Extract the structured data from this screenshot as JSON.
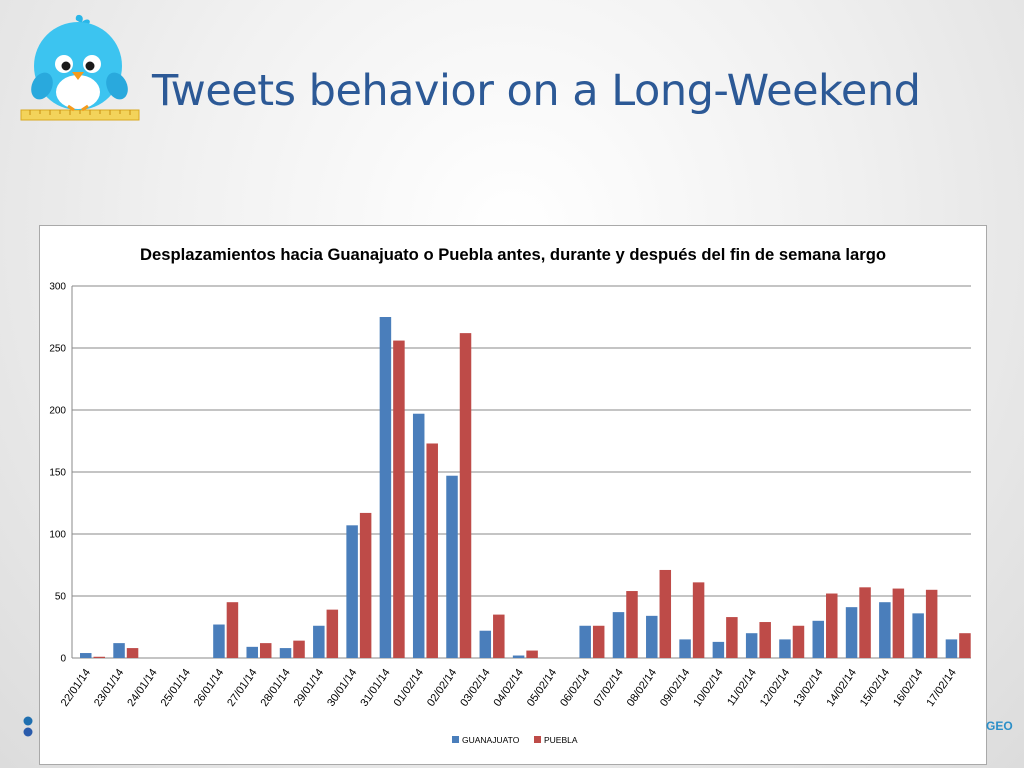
{
  "slide": {
    "title": "Tweets behavior on a Long-Weekend",
    "logo_icon": "twitter-bird-ruler-icon",
    "title_color": "#2c5996"
  },
  "footer": {
    "right_text": "GEO",
    "left_icon": "social-icons"
  },
  "chart_data": {
    "type": "bar",
    "title": "Desplazamientos hacia Guanajuato o Puebla antes, durante y después del fin de semana largo",
    "xlabel": "",
    "ylabel": "",
    "ylim": [
      0,
      300
    ],
    "yticks": [
      0,
      50,
      100,
      150,
      200,
      250,
      300
    ],
    "grid": true,
    "legend_position": "bottom",
    "categories": [
      "22/01/14",
      "23/01/14",
      "24/01/14",
      "25/01/14",
      "26/01/14",
      "27/01/14",
      "28/01/14",
      "29/01/14",
      "30/01/14",
      "31/01/14",
      "01/02/14",
      "02/02/14",
      "03/02/14",
      "04/02/14",
      "05/02/14",
      "06/02/14",
      "07/02/14",
      "08/02/14",
      "09/02/14",
      "10/02/14",
      "11/02/14",
      "12/02/14",
      "13/02/14",
      "14/02/14",
      "15/02/14",
      "16/02/14",
      "17/02/14"
    ],
    "series": [
      {
        "name": "GUANAJUATO",
        "color": "#4a7ebb",
        "values": [
          4,
          12,
          0,
          0,
          27,
          9,
          8,
          26,
          107,
          275,
          197,
          147,
          22,
          2,
          0,
          26,
          37,
          34,
          15,
          13,
          20,
          15,
          30,
          41,
          45,
          36,
          15
        ]
      },
      {
        "name": "PUEBLA",
        "color": "#be4b48",
        "values": [
          1,
          8,
          0,
          0,
          45,
          12,
          14,
          39,
          117,
          256,
          173,
          262,
          35,
          6,
          0,
          26,
          54,
          71,
          61,
          33,
          29,
          26,
          52,
          57,
          56,
          55,
          20
        ]
      }
    ]
  }
}
